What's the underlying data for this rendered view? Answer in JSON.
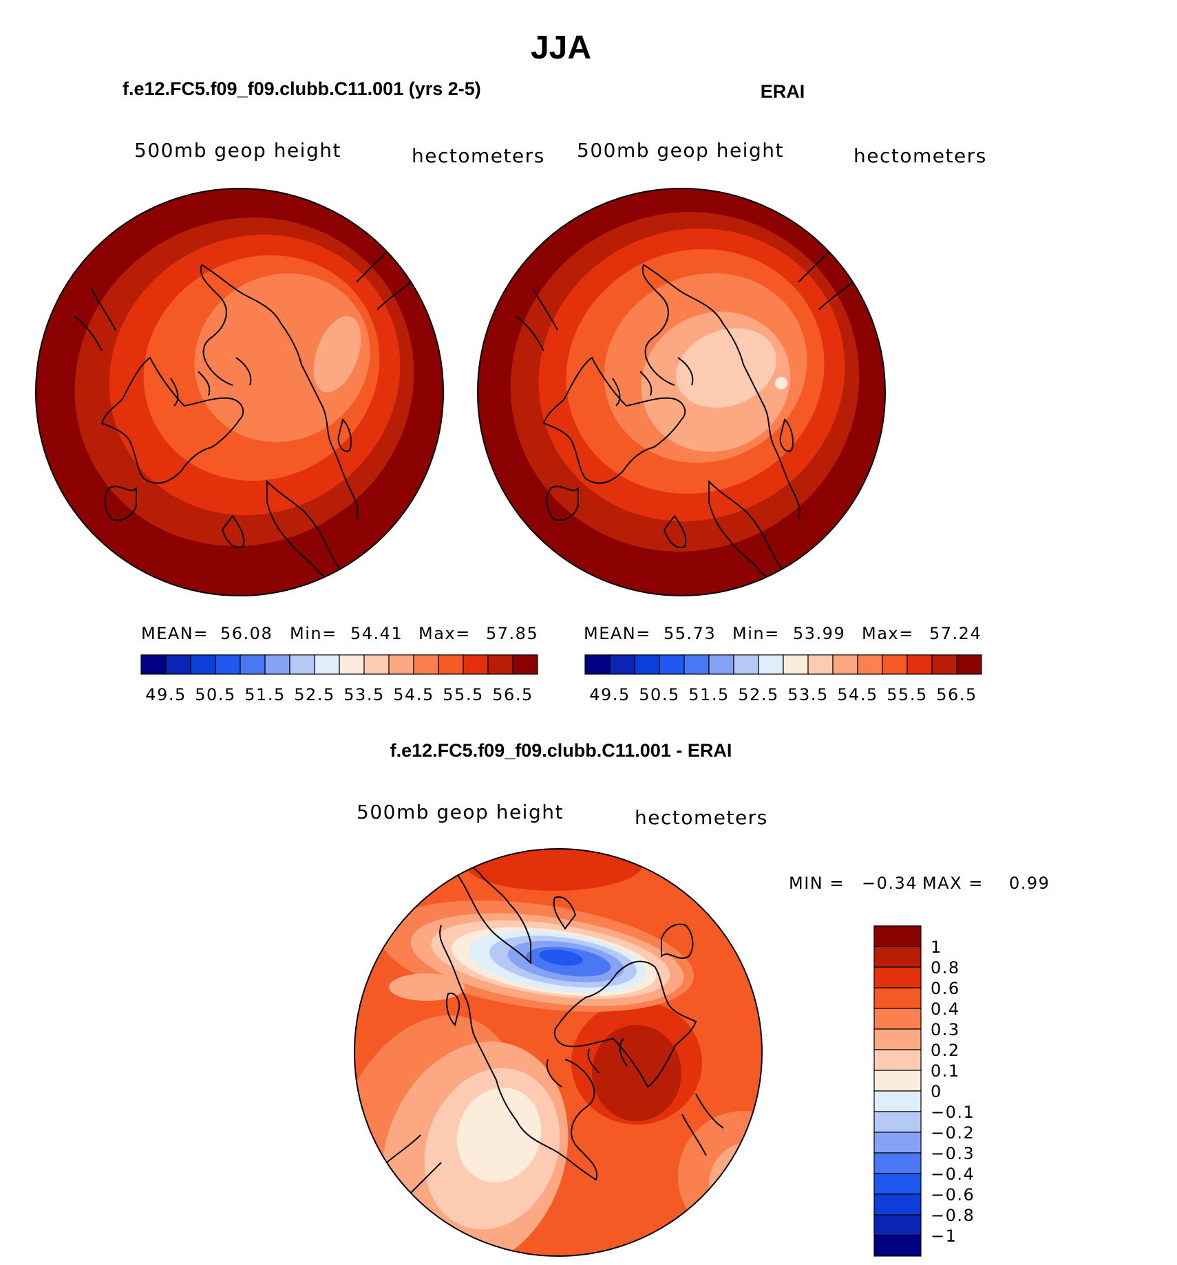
{
  "page_title": "JJA",
  "palette_abs": [
    "#000083",
    "#0b24b6",
    "#0c3fd9",
    "#1f58ef",
    "#4a78f4",
    "#86a2f5",
    "#b5c9f7",
    "#dfeefb",
    "#fcecdc",
    "#fccbb1",
    "#fca882",
    "#fa804f",
    "#f55a25",
    "#e3320b",
    "#b81e05",
    "#8b0000"
  ],
  "palette_diff": [
    "#000083",
    "#0b24b6",
    "#0c3fd9",
    "#1f58ef",
    "#4a78f4",
    "#86a2f5",
    "#b5c9f7",
    "#dfeefb",
    "#fcecdc",
    "#fccbb1",
    "#fca882",
    "#fa804f",
    "#f55a25",
    "#e3320b",
    "#b81e05",
    "#8b0000"
  ],
  "panels": [
    {
      "title": "f.e12.FC5.f09_f09.clubb.C11.001 (yrs 2-5)",
      "left_label": "500mb geop height",
      "right_label": "hectometers",
      "stats": {
        "mean_label": "MEAN=",
        "mean": "56.08",
        "min_label": "Min=",
        "min": "54.41",
        "max_label": "Max=",
        "max": "57.85"
      },
      "ticks": [
        "49.5",
        "50.5",
        "51.5",
        "52.5",
        "53.5",
        "54.5",
        "55.5",
        "56.5"
      ]
    },
    {
      "title": "ERAI",
      "left_label": "500mb geop height",
      "right_label": "hectometers",
      "stats": {
        "mean_label": "MEAN=",
        "mean": "55.73",
        "min_label": "Min=",
        "min": "53.99",
        "max_label": "Max=",
        "max": "57.24"
      },
      "ticks": [
        "49.5",
        "50.5",
        "51.5",
        "52.5",
        "53.5",
        "54.5",
        "55.5",
        "56.5"
      ]
    },
    {
      "title": "f.e12.FC5.f09_f09.clubb.C11.001 - ERAI",
      "left_label": "500mb geop height",
      "right_label": "hectometers",
      "stats": {
        "min_label": "MIN =",
        "min": "−0.34",
        "max_label": "MAX =",
        "max": "0.99"
      },
      "ticks": [
        "1",
        "0.8",
        "0.6",
        "0.4",
        "0.3",
        "0.2",
        "0.1",
        "0",
        "−0.1",
        "−0.2",
        "−0.3",
        "−0.4",
        "−0.6",
        "−0.8",
        "−1"
      ]
    }
  ]
}
